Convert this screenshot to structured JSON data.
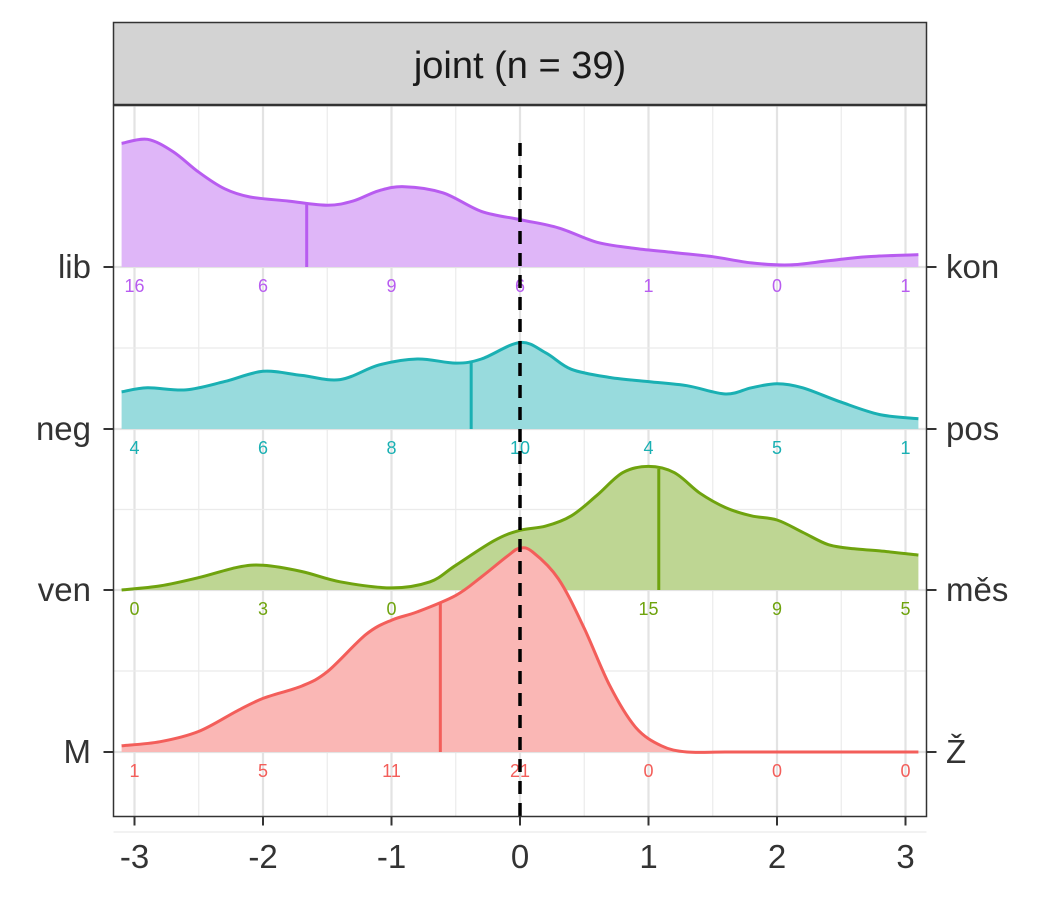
{
  "panel": {
    "strip_title": "joint (n = 39)",
    "strip_fill": "#d3d3d3"
  },
  "chart_data": {
    "type": "ridgeline-density",
    "xlim": [
      -3.1,
      3.1
    ],
    "x_ticks": [
      -3,
      -2,
      -1,
      0,
      1,
      2,
      3
    ],
    "x_tick_labels": [
      "-3",
      "-2",
      "-1",
      "0",
      "1",
      "2",
      "3"
    ],
    "reference_line_x": 0,
    "grid": true,
    "count_positions": [
      -3,
      -2,
      -1,
      0,
      1,
      2,
      3
    ],
    "rows": [
      {
        "left_label": "M",
        "right_label": "Ž",
        "color": "#f35e5a",
        "mean": -0.62,
        "counts": [
          "1",
          "5",
          "11",
          "21",
          "0",
          "0",
          "0"
        ],
        "density": [
          [
            -3.1,
            0.03
          ],
          [
            -2.8,
            0.05
          ],
          [
            -2.5,
            0.1
          ],
          [
            -2.2,
            0.2
          ],
          [
            -2.0,
            0.26
          ],
          [
            -1.7,
            0.32
          ],
          [
            -1.5,
            0.39
          ],
          [
            -1.2,
            0.57
          ],
          [
            -1.0,
            0.64
          ],
          [
            -0.8,
            0.68
          ],
          [
            -0.5,
            0.76
          ],
          [
            -0.3,
            0.85
          ],
          [
            -0.1,
            0.95
          ],
          [
            0.0,
            0.99
          ],
          [
            0.1,
            0.97
          ],
          [
            0.3,
            0.84
          ],
          [
            0.5,
            0.6
          ],
          [
            0.7,
            0.32
          ],
          [
            0.9,
            0.12
          ],
          [
            1.1,
            0.03
          ],
          [
            1.3,
            0.0
          ],
          [
            1.6,
            0.0
          ],
          [
            2.0,
            0.0
          ],
          [
            2.5,
            0.0
          ],
          [
            3.1,
            0.0
          ]
        ]
      },
      {
        "left_label": "ven",
        "right_label": "měs",
        "color": "#6fa30e",
        "mean": 1.08,
        "counts": [
          "0",
          "3",
          "0",
          "7",
          "15",
          "9",
          "5"
        ],
        "density": [
          [
            -3.1,
            0.0
          ],
          [
            -2.8,
            0.02
          ],
          [
            -2.5,
            0.06
          ],
          [
            -2.2,
            0.11
          ],
          [
            -2.0,
            0.12
          ],
          [
            -1.7,
            0.09
          ],
          [
            -1.4,
            0.04
          ],
          [
            -1.0,
            0.01
          ],
          [
            -0.7,
            0.04
          ],
          [
            -0.5,
            0.12
          ],
          [
            -0.2,
            0.24
          ],
          [
            0.0,
            0.29
          ],
          [
            0.2,
            0.31
          ],
          [
            0.4,
            0.36
          ],
          [
            0.6,
            0.46
          ],
          [
            0.8,
            0.57
          ],
          [
            1.0,
            0.6
          ],
          [
            1.2,
            0.57
          ],
          [
            1.4,
            0.47
          ],
          [
            1.6,
            0.4
          ],
          [
            1.8,
            0.36
          ],
          [
            2.0,
            0.34
          ],
          [
            2.2,
            0.28
          ],
          [
            2.4,
            0.22
          ],
          [
            2.6,
            0.2
          ],
          [
            2.8,
            0.19
          ],
          [
            3.1,
            0.17
          ]
        ]
      },
      {
        "left_label": "neg",
        "right_label": "pos",
        "color": "#1ab0b3",
        "mean": -0.38,
        "counts": [
          "4",
          "6",
          "8",
          "10",
          "4",
          "5",
          "1"
        ],
        "density": [
          [
            -3.1,
            0.18
          ],
          [
            -2.9,
            0.2
          ],
          [
            -2.6,
            0.19
          ],
          [
            -2.3,
            0.23
          ],
          [
            -2.0,
            0.28
          ],
          [
            -1.7,
            0.26
          ],
          [
            -1.4,
            0.24
          ],
          [
            -1.1,
            0.31
          ],
          [
            -0.8,
            0.34
          ],
          [
            -0.5,
            0.32
          ],
          [
            -0.3,
            0.34
          ],
          [
            0.0,
            0.42
          ],
          [
            0.2,
            0.37
          ],
          [
            0.4,
            0.29
          ],
          [
            0.7,
            0.25
          ],
          [
            1.0,
            0.23
          ],
          [
            1.3,
            0.21
          ],
          [
            1.6,
            0.17
          ],
          [
            1.8,
            0.2
          ],
          [
            2.0,
            0.22
          ],
          [
            2.2,
            0.2
          ],
          [
            2.5,
            0.13
          ],
          [
            2.8,
            0.07
          ],
          [
            3.1,
            0.05
          ]
        ]
      },
      {
        "left_label": "lib",
        "right_label": "kon",
        "color": "#b85cf0",
        "mean": -1.66,
        "counts": [
          "16",
          "6",
          "9",
          "6",
          "1",
          "0",
          "1"
        ],
        "density": [
          [
            -3.1,
            0.6
          ],
          [
            -2.9,
            0.62
          ],
          [
            -2.7,
            0.56
          ],
          [
            -2.5,
            0.46
          ],
          [
            -2.3,
            0.38
          ],
          [
            -2.1,
            0.34
          ],
          [
            -1.8,
            0.32
          ],
          [
            -1.5,
            0.3
          ],
          [
            -1.3,
            0.32
          ],
          [
            -1.1,
            0.37
          ],
          [
            -0.9,
            0.39
          ],
          [
            -0.6,
            0.36
          ],
          [
            -0.3,
            0.27
          ],
          [
            0.0,
            0.23
          ],
          [
            0.3,
            0.19
          ],
          [
            0.6,
            0.12
          ],
          [
            0.9,
            0.09
          ],
          [
            1.2,
            0.07
          ],
          [
            1.5,
            0.05
          ],
          [
            1.8,
            0.02
          ],
          [
            2.1,
            0.01
          ],
          [
            2.4,
            0.03
          ],
          [
            2.7,
            0.05
          ],
          [
            3.1,
            0.06
          ]
        ]
      }
    ]
  }
}
